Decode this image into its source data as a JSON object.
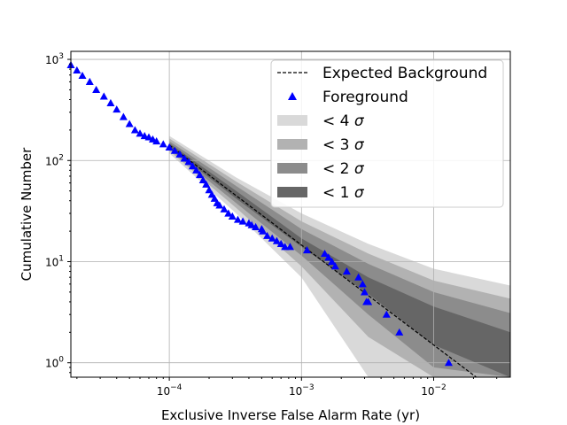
{
  "chart_data": {
    "type": "scatter",
    "xlabel": "Exclusive Inverse False Alarm Rate (yr)",
    "ylabel": "Cumulative Number",
    "xscale": "log",
    "yscale": "log",
    "xlim": [
      1.8e-05,
      0.038
    ],
    "ylim": [
      0.72,
      1200
    ],
    "grid": true,
    "legend_position": "top-right",
    "x_ticks": [
      {
        "value": 0.0001,
        "base": "10",
        "exp": "−4"
      },
      {
        "value": 0.001,
        "base": "10",
        "exp": "−3"
      },
      {
        "value": 0.01,
        "base": "10",
        "exp": "−2"
      }
    ],
    "y_ticks": [
      {
        "value": 1,
        "base": "10",
        "exp": "0"
      },
      {
        "value": 10,
        "base": "10",
        "exp": "1"
      },
      {
        "value": 100,
        "base": "10",
        "exp": "2"
      },
      {
        "value": 1000,
        "base": "10",
        "exp": "3"
      }
    ],
    "expected_background": {
      "name": "Expected Background",
      "style": "dashed",
      "color": "#000000",
      "x": [
        0.0001,
        0.021
      ],
      "y": [
        142,
        0.72
      ]
    },
    "sigma_bands": [
      {
        "name": "< 4σ",
        "label_text": "< 4",
        "sym": "σ",
        "color": "#d9d9d9",
        "x": [
          0.0001,
          0.00032,
          0.001,
          0.0032,
          0.01,
          0.038
        ],
        "upper": [
          175,
          68,
          30,
          15,
          8.5,
          5.8
        ],
        "lower": [
          118,
          30,
          7.0,
          0.72,
          0.72,
          0.72
        ]
      },
      {
        "name": "< 3σ",
        "label_text": "< 3",
        "sym": "σ",
        "color": "#b2b2b2",
        "x": [
          0.0001,
          0.00032,
          0.001,
          0.0032,
          0.01,
          0.038
        ],
        "upper": [
          165,
          62,
          25,
          12,
          6.5,
          4.3
        ],
        "lower": [
          125,
          34,
          9.0,
          1.8,
          0.72,
          0.72
        ]
      },
      {
        "name": "< 2σ",
        "label_text": "< 2",
        "sym": "σ",
        "color": "#8c8c8c",
        "x": [
          0.0001,
          0.00032,
          0.001,
          0.0032,
          0.01,
          0.038
        ],
        "upper": [
          155,
          56,
          21,
          9.5,
          5.0,
          3.1
        ],
        "lower": [
          130,
          38,
          11.5,
          3.0,
          0.9,
          0.72
        ]
      },
      {
        "name": "< 1σ",
        "label_text": "< 1",
        "sym": "σ",
        "color": "#666666",
        "x": [
          0.0001,
          0.00032,
          0.001,
          0.0032,
          0.01,
          0.038
        ],
        "upper": [
          148,
          50,
          17,
          7.0,
          3.6,
          2.0
        ],
        "lower": [
          136,
          42,
          14,
          4.8,
          1.5,
          0.72
        ]
      }
    ],
    "foreground": {
      "name": "Foreground",
      "marker": "triangle",
      "color": "#0000ff",
      "x": [
        1.8e-05,
        2e-05,
        2.2e-05,
        2.5e-05,
        2.8e-05,
        3.2e-05,
        3.6e-05,
        4e-05,
        4.5e-05,
        5e-05,
        5.5e-05,
        6e-05,
        6.5e-05,
        7e-05,
        7.5e-05,
        8e-05,
        9e-05,
        0.0001,
        0.00011,
        0.00012,
        0.00013,
        0.00014,
        0.00015,
        0.00016,
        0.00017,
        0.00018,
        0.00019,
        0.0002,
        0.00021,
        0.00022,
        0.00023,
        0.00024,
        0.00026,
        0.00028,
        0.0003,
        0.00033,
        0.00036,
        0.0004,
        0.00042,
        0.00045,
        0.0005,
        0.00051,
        0.00055,
        0.0006,
        0.00065,
        0.0007,
        0.00075,
        0.00082,
        0.0011,
        0.0015,
        0.0016,
        0.0017,
        0.0018,
        0.0022,
        0.0027,
        0.0029,
        0.003,
        0.0031,
        0.0032,
        0.0044,
        0.0055,
        0.013
      ],
      "y": [
        880,
        780,
        690,
        600,
        500,
        430,
        370,
        320,
        270,
        230,
        200,
        185,
        175,
        170,
        162,
        155,
        145,
        135,
        125,
        115,
        105,
        97,
        88,
        80,
        72,
        64,
        58,
        51,
        46,
        42,
        38,
        36,
        33,
        30,
        28,
        26,
        25,
        24,
        23,
        22,
        21,
        20,
        18,
        17,
        16,
        15,
        14,
        14,
        13,
        12,
        11,
        10,
        9,
        8,
        7,
        6,
        5,
        4,
        4,
        3,
        2,
        1
      ]
    },
    "legend": [
      {
        "label": "Expected Background",
        "kind": "dashed-line"
      },
      {
        "label": "Foreground",
        "kind": "triangle"
      },
      {
        "label_text": "< 4",
        "sym": "σ",
        "kind": "patch",
        "color": "#d9d9d9"
      },
      {
        "label_text": "< 3",
        "sym": "σ",
        "kind": "patch",
        "color": "#b2b2b2"
      },
      {
        "label_text": "< 2",
        "sym": "σ",
        "kind": "patch",
        "color": "#8c8c8c"
      },
      {
        "label_text": "< 1",
        "sym": "σ",
        "kind": "patch",
        "color": "#666666"
      }
    ]
  }
}
